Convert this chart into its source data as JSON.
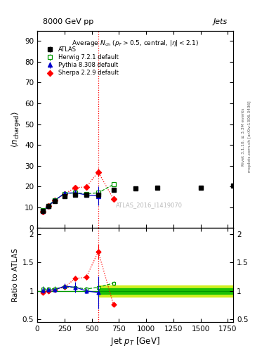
{
  "title_top": "8000 GeV pp",
  "title_right": "Jets",
  "watermark": "ATLAS_2016_I1419070",
  "right_label1": "Rivet 3.1.10, ≥ 3.3M events",
  "right_label2": "mcplots.cern.ch [arXiv:1306.3436]",
  "xlabel": "Jet $p_T$ [GeV]",
  "ylabel": "$\\langle n_{\\mathrm{charged}} \\rangle$",
  "ylabel_ratio": "Ratio to ATLAS",
  "xlim": [
    0,
    1800
  ],
  "ylim_main": [
    0,
    95
  ],
  "ylim_ratio": [
    0.45,
    2.1
  ],
  "vline_x": 560,
  "atlas_x": [
    50,
    100,
    160,
    250,
    350,
    450,
    560,
    700,
    900,
    1100,
    1500,
    1800
  ],
  "atlas_y": [
    8.2,
    10.5,
    13.0,
    15.5,
    16.0,
    16.0,
    16.0,
    18.5,
    19.0,
    19.5,
    19.5,
    20.5
  ],
  "atlas_yerr": [
    0.3,
    0.3,
    0.4,
    0.4,
    0.4,
    0.5,
    0.5,
    0.5,
    0.5,
    0.5,
    0.5,
    0.5
  ],
  "herwig_x": [
    50,
    100,
    160,
    250,
    350,
    450,
    560,
    700
  ],
  "herwig_y": [
    8.5,
    10.8,
    13.5,
    16.5,
    17.0,
    16.5,
    17.0,
    21.0
  ],
  "herwig_yerr": [
    0.2,
    0.2,
    0.3,
    0.3,
    0.3,
    0.3,
    0.3,
    0.4
  ],
  "pythia_x": [
    50,
    100,
    160,
    250,
    350,
    450,
    560
  ],
  "pythia_y": [
    8.3,
    10.7,
    13.2,
    16.8,
    17.0,
    16.0,
    15.5
  ],
  "pythia_yerr": [
    0.3,
    0.3,
    0.4,
    0.5,
    1.5,
    0.5,
    4.5
  ],
  "sherpa_x": [
    50,
    100,
    160,
    250,
    350,
    450,
    560,
    700
  ],
  "sherpa_y": [
    8.0,
    10.5,
    13.3,
    16.5,
    19.5,
    19.8,
    27.0,
    14.0
  ],
  "sherpa_yerr": [
    0.2,
    0.2,
    0.3,
    0.3,
    0.5,
    0.5,
    2.0,
    0.5
  ],
  "band_xstart": 560,
  "band_inner": 0.05,
  "band_outer": 0.1,
  "color_atlas": "#000000",
  "color_herwig": "#009900",
  "color_pythia": "#0000cc",
  "color_sherpa": "#ff0000",
  "color_band_inner": "#00bb00",
  "color_band_outer": "#ccee00",
  "yticks_main": [
    0,
    10,
    20,
    30,
    40,
    50,
    60,
    70,
    80,
    90
  ],
  "yticks_ratio": [
    0.5,
    1.0,
    1.5,
    2.0
  ]
}
